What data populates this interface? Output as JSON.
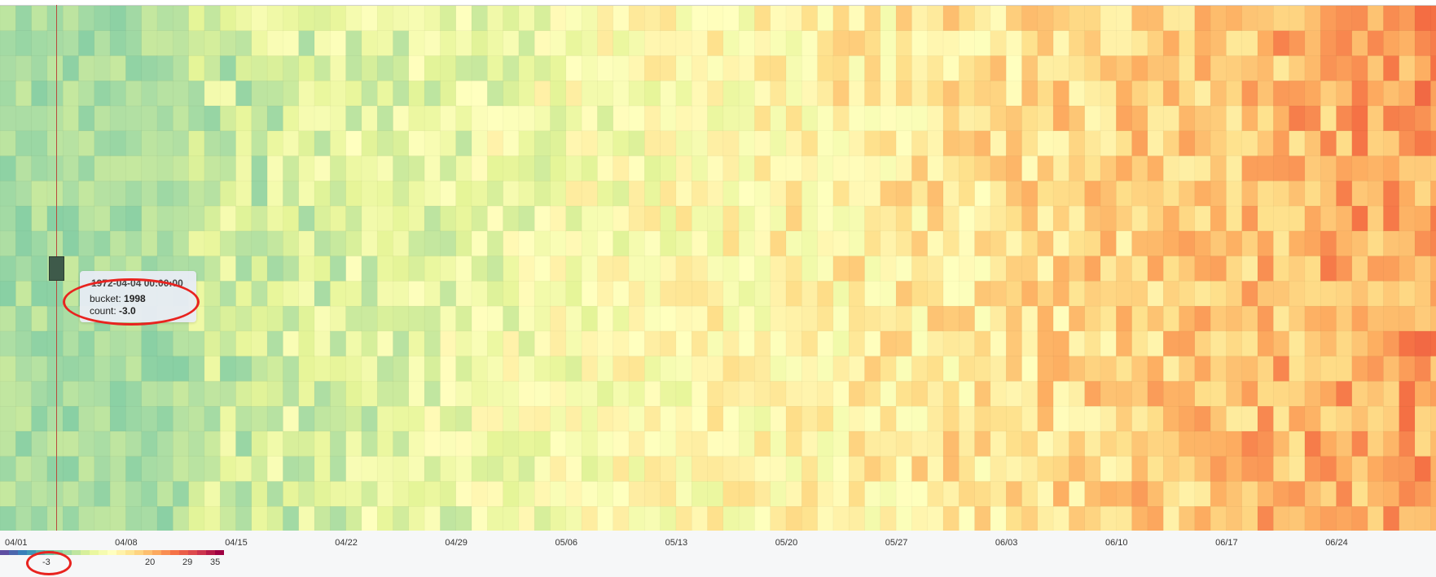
{
  "chart_data": {
    "type": "heatmap",
    "title": "",
    "xlabel": "",
    "ylabel": "",
    "x_start": "1972-04-01",
    "x_end": "1972-06-30",
    "x_ticks": [
      "04/01",
      "04/08",
      "04/15",
      "04/22",
      "04/29",
      "05/06",
      "05/13",
      "05/20",
      "05/27",
      "06/03",
      "06/10",
      "06/17",
      "06/24"
    ],
    "rows": 21,
    "color_scale": {
      "min": -3,
      "max": 35,
      "labels": [
        "-3",
        "20",
        "29",
        "35"
      ],
      "stops": [
        "#5e4fa2",
        "#3288bd",
        "#66c2a5",
        "#abdda4",
        "#e6f598",
        "#ffffbf",
        "#fee08b",
        "#fdae61",
        "#f46d43",
        "#d53e4f",
        "#9e0142"
      ]
    },
    "trend": "values increase from green (low, early April) to orange/red (high, late May through June)"
  },
  "tooltip": {
    "time": "1972-04-04 00:00:00",
    "bucket_label": "bucket: ",
    "bucket_value": "1998",
    "count_label": "count: ",
    "count_value": "-3.0"
  },
  "colors": {
    "annotation": "#e8231f",
    "cursor_line": "#b94a3c",
    "hover_cell": "#3e5a4a"
  }
}
